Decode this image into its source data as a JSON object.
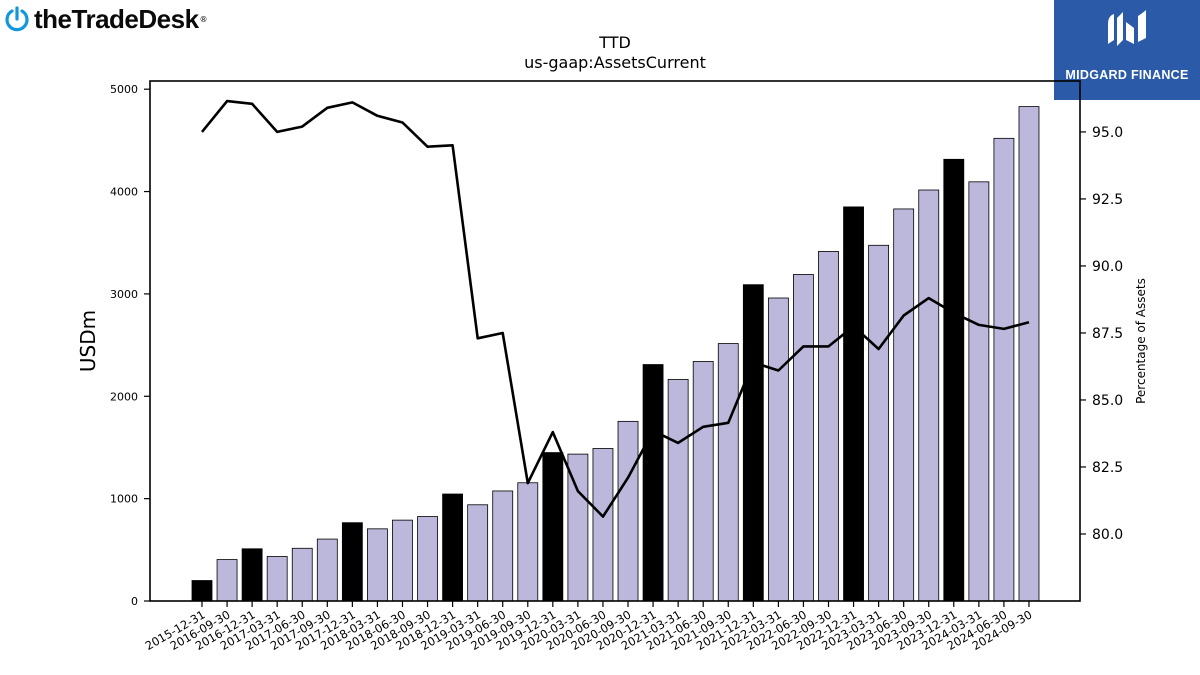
{
  "logos": {
    "left_wordmark": "theTradeDesk",
    "right_brand": "MIDGARD FINANCE"
  },
  "chart_data": {
    "type": "bar",
    "title": "TTD",
    "subtitle": "us-gaap:AssetsCurrent",
    "ylabel": "USDm",
    "y2label": "Percentage of Assets",
    "ylim": [
      0,
      5080
    ],
    "yticks": [
      0,
      1000,
      2000,
      3000,
      4000,
      5000
    ],
    "y2lim": [
      77.5,
      96.9
    ],
    "y2ticks": [
      "80.0",
      "82.5",
      "85.0",
      "87.5",
      "90.0",
      "92.5",
      "95.0"
    ],
    "grid": false,
    "categories": [
      "2015-12-31",
      "2016-09-30",
      "2016-12-31",
      "2017-03-31",
      "2017-06-30",
      "2017-09-30",
      "2017-12-31",
      "2018-03-31",
      "2018-06-30",
      "2018-09-30",
      "2018-12-31",
      "2019-03-31",
      "2019-06-30",
      "2019-09-30",
      "2019-12-31",
      "2020-03-31",
      "2020-06-30",
      "2020-09-30",
      "2020-12-31",
      "2021-03-31",
      "2021-06-30",
      "2021-09-30",
      "2021-12-31",
      "2022-03-31",
      "2022-06-30",
      "2022-09-30",
      "2022-12-31",
      "2023-03-31",
      "2023-06-30",
      "2023-09-30",
      "2023-12-31",
      "2024-03-31",
      "2024-06-30",
      "2024-09-30"
    ],
    "series": [
      {
        "kind": "bar",
        "values": [
          200,
          405,
          510,
          435,
          515,
          605,
          765,
          705,
          790,
          825,
          1045,
          940,
          1075,
          1155,
          1450,
          1435,
          1490,
          1755,
          2310,
          2165,
          2340,
          2515,
          3090,
          2960,
          3190,
          3415,
          3850,
          3475,
          3830,
          4015,
          4315,
          4095,
          4520,
          4830
        ],
        "highlight": [
          true,
          false,
          true,
          false,
          false,
          false,
          true,
          false,
          false,
          false,
          true,
          false,
          false,
          false,
          true,
          false,
          false,
          false,
          true,
          false,
          false,
          false,
          true,
          false,
          false,
          false,
          true,
          false,
          false,
          false,
          true,
          false,
          false,
          false
        ],
        "color": "#bcb8dc",
        "highlight_color": "#000000"
      },
      {
        "kind": "line",
        "axis": "right",
        "values": [
          95.0,
          96.15,
          96.05,
          95.0,
          95.2,
          95.9,
          96.1,
          95.6,
          95.35,
          94.45,
          94.5,
          87.3,
          87.5,
          81.9,
          83.8,
          81.6,
          80.65,
          82.1,
          83.85,
          83.4,
          84.0,
          84.15,
          86.4,
          86.1,
          87.0,
          87.0,
          87.75,
          86.9,
          88.15,
          88.8,
          88.25,
          87.8,
          87.65,
          87.9
        ],
        "color": "#000000"
      }
    ]
  }
}
